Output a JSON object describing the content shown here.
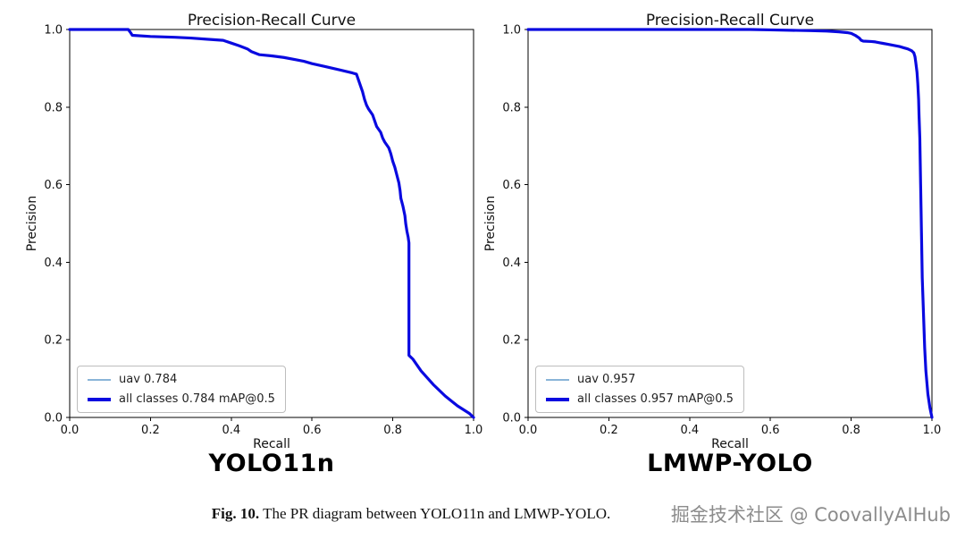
{
  "figure": {
    "caption_label": "Fig. 10.",
    "caption_text": "The PR diagram between YOLO11n and LMWP-YOLO.",
    "watermark": "掘金技术社区 @ CoovallyAIHub"
  },
  "colors": {
    "all_classes_line": "#0a0ae0",
    "class_line": "#8ab4d8",
    "axis": "#000000",
    "legend_border": "#bdbdbd",
    "watermark": "#8c8c8c"
  },
  "chart_data": [
    {
      "type": "line",
      "title": "Precision-Recall Curve",
      "model_label": "YOLO11n",
      "xlabel": "Recall",
      "ylabel": "Precision",
      "xlim": [
        0.0,
        1.0
      ],
      "ylim": [
        0.0,
        1.0
      ],
      "xticks": [
        "0.0",
        "0.2",
        "0.4",
        "0.6",
        "0.8",
        "1.0"
      ],
      "yticks": [
        "0.0",
        "0.2",
        "0.4",
        "0.6",
        "0.8",
        "1.0"
      ],
      "grid": false,
      "legend_position": "lower-left",
      "legend": [
        {
          "label": "uav 0.784",
          "style": "thin"
        },
        {
          "label": "all classes 0.784 mAP@0.5",
          "style": "thick"
        }
      ],
      "series": [
        {
          "name": "uav",
          "ap": 0.784,
          "style": "thin",
          "x": [
            0.0,
            0.145,
            0.15,
            0.155,
            0.2,
            0.26,
            0.3,
            0.34,
            0.38,
            0.4,
            0.42,
            0.44,
            0.45,
            0.47,
            0.5,
            0.53,
            0.56,
            0.58,
            0.6,
            0.63,
            0.66,
            0.68,
            0.7,
            0.71,
            0.715,
            0.72,
            0.725,
            0.73,
            0.735,
            0.74,
            0.75,
            0.755,
            0.76,
            0.77,
            0.775,
            0.78,
            0.79,
            0.795,
            0.8,
            0.805,
            0.81,
            0.815,
            0.818,
            0.82,
            0.825,
            0.83,
            0.832,
            0.835,
            0.838,
            0.84,
            0.84,
            0.85,
            0.87,
            0.9,
            0.93,
            0.96,
            0.99,
            1.0
          ],
          "y": [
            1.0,
            1.0,
            0.993,
            0.985,
            0.982,
            0.98,
            0.978,
            0.975,
            0.972,
            0.965,
            0.958,
            0.95,
            0.943,
            0.935,
            0.932,
            0.928,
            0.922,
            0.918,
            0.912,
            0.905,
            0.898,
            0.893,
            0.888,
            0.885,
            0.87,
            0.855,
            0.84,
            0.82,
            0.805,
            0.795,
            0.78,
            0.765,
            0.75,
            0.735,
            0.72,
            0.71,
            0.695,
            0.68,
            0.66,
            0.645,
            0.625,
            0.605,
            0.585,
            0.565,
            0.545,
            0.52,
            0.5,
            0.48,
            0.465,
            0.45,
            0.16,
            0.15,
            0.12,
            0.085,
            0.055,
            0.03,
            0.01,
            0.0
          ]
        },
        {
          "name": "all classes",
          "map50": 0.784,
          "style": "thick",
          "x": [
            0.0,
            0.145,
            0.15,
            0.155,
            0.2,
            0.26,
            0.3,
            0.34,
            0.38,
            0.4,
            0.42,
            0.44,
            0.45,
            0.47,
            0.5,
            0.53,
            0.56,
            0.58,
            0.6,
            0.63,
            0.66,
            0.68,
            0.7,
            0.71,
            0.715,
            0.72,
            0.725,
            0.73,
            0.735,
            0.74,
            0.75,
            0.755,
            0.76,
            0.77,
            0.775,
            0.78,
            0.79,
            0.795,
            0.8,
            0.805,
            0.81,
            0.815,
            0.818,
            0.82,
            0.825,
            0.83,
            0.832,
            0.835,
            0.838,
            0.84,
            0.84,
            0.85,
            0.87,
            0.9,
            0.93,
            0.96,
            0.99,
            1.0
          ],
          "y": [
            1.0,
            1.0,
            0.993,
            0.985,
            0.982,
            0.98,
            0.978,
            0.975,
            0.972,
            0.965,
            0.958,
            0.95,
            0.943,
            0.935,
            0.932,
            0.928,
            0.922,
            0.918,
            0.912,
            0.905,
            0.898,
            0.893,
            0.888,
            0.885,
            0.87,
            0.855,
            0.84,
            0.82,
            0.805,
            0.795,
            0.78,
            0.765,
            0.75,
            0.735,
            0.72,
            0.71,
            0.695,
            0.68,
            0.66,
            0.645,
            0.625,
            0.605,
            0.585,
            0.565,
            0.545,
            0.52,
            0.5,
            0.48,
            0.465,
            0.45,
            0.16,
            0.15,
            0.12,
            0.085,
            0.055,
            0.03,
            0.01,
            0.0
          ]
        }
      ]
    },
    {
      "type": "line",
      "title": "Precision-Recall Curve",
      "model_label": "LMWP-YOLO",
      "xlabel": "Recall",
      "ylabel": "Precision",
      "xlim": [
        0.0,
        1.0
      ],
      "ylim": [
        0.0,
        1.0
      ],
      "xticks": [
        "0.0",
        "0.2",
        "0.4",
        "0.6",
        "0.8",
        "1.0"
      ],
      "yticks": [
        "0.0",
        "0.2",
        "0.4",
        "0.6",
        "0.8",
        "1.0"
      ],
      "grid": false,
      "legend_position": "lower-left",
      "legend": [
        {
          "label": "uav 0.957",
          "style": "thin"
        },
        {
          "label": "all classes 0.957 mAP@0.5",
          "style": "thick"
        }
      ],
      "series": [
        {
          "name": "uav",
          "ap": 0.957,
          "style": "thin",
          "x": [
            0.0,
            0.55,
            0.6,
            0.65,
            0.7,
            0.74,
            0.77,
            0.79,
            0.8,
            0.81,
            0.82,
            0.825,
            0.83,
            0.85,
            0.86,
            0.87,
            0.88,
            0.89,
            0.9,
            0.91,
            0.92,
            0.93,
            0.94,
            0.95,
            0.955,
            0.958,
            0.96,
            0.963,
            0.965,
            0.967,
            0.968,
            0.97,
            0.971,
            0.972,
            0.973,
            0.974,
            0.975,
            0.976,
            0.978,
            0.98,
            0.982,
            0.985,
            0.99,
            0.995,
            1.0
          ],
          "y": [
            1.0,
            1.0,
            0.999,
            0.998,
            0.997,
            0.996,
            0.994,
            0.992,
            0.99,
            0.985,
            0.978,
            0.972,
            0.97,
            0.969,
            0.968,
            0.966,
            0.964,
            0.962,
            0.96,
            0.958,
            0.956,
            0.953,
            0.95,
            0.945,
            0.94,
            0.93,
            0.915,
            0.89,
            0.86,
            0.82,
            0.78,
            0.72,
            0.66,
            0.6,
            0.54,
            0.48,
            0.42,
            0.36,
            0.3,
            0.24,
            0.18,
            0.12,
            0.06,
            0.025,
            0.0
          ]
        },
        {
          "name": "all classes",
          "map50": 0.957,
          "style": "thick",
          "x": [
            0.0,
            0.55,
            0.6,
            0.65,
            0.7,
            0.74,
            0.77,
            0.79,
            0.8,
            0.81,
            0.82,
            0.825,
            0.83,
            0.85,
            0.86,
            0.87,
            0.88,
            0.89,
            0.9,
            0.91,
            0.92,
            0.93,
            0.94,
            0.95,
            0.955,
            0.958,
            0.96,
            0.963,
            0.965,
            0.967,
            0.968,
            0.97,
            0.971,
            0.972,
            0.973,
            0.974,
            0.975,
            0.976,
            0.978,
            0.98,
            0.982,
            0.985,
            0.99,
            0.995,
            1.0
          ],
          "y": [
            1.0,
            1.0,
            0.999,
            0.998,
            0.997,
            0.996,
            0.994,
            0.992,
            0.99,
            0.985,
            0.978,
            0.972,
            0.97,
            0.969,
            0.968,
            0.966,
            0.964,
            0.962,
            0.96,
            0.958,
            0.956,
            0.953,
            0.95,
            0.945,
            0.94,
            0.93,
            0.915,
            0.89,
            0.86,
            0.82,
            0.78,
            0.72,
            0.66,
            0.6,
            0.54,
            0.48,
            0.42,
            0.36,
            0.3,
            0.24,
            0.18,
            0.12,
            0.06,
            0.025,
            0.0
          ]
        }
      ]
    }
  ]
}
